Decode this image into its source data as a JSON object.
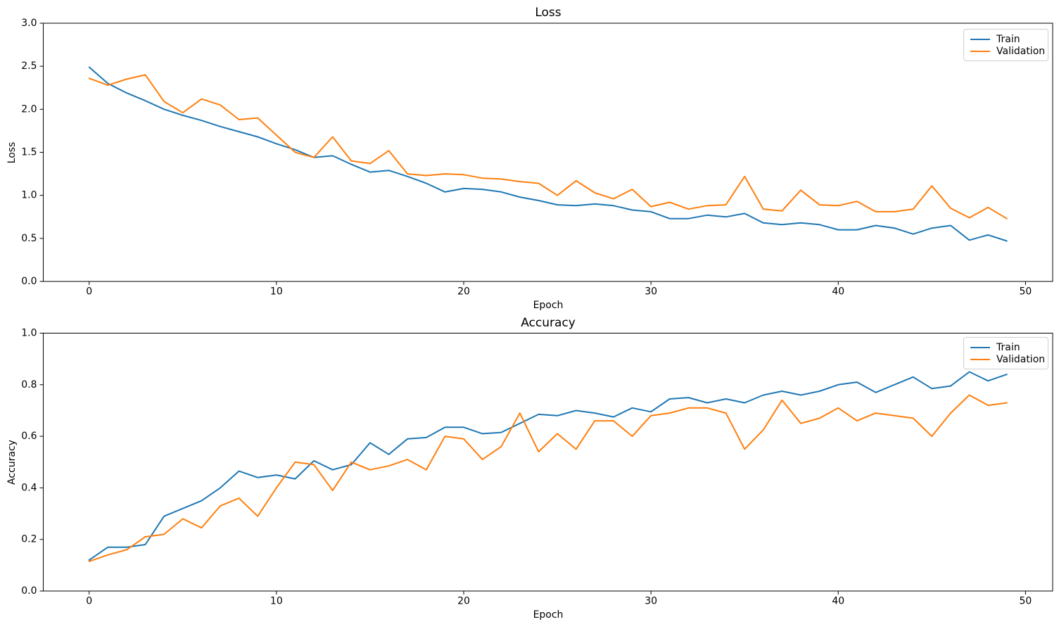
{
  "figure": {
    "background": "#ffffff"
  },
  "colors": {
    "train": "#1f77b4",
    "validation": "#ff7f0e",
    "spine": "#000000",
    "tick_text": "#000000",
    "legend_border": "#cfcfcf"
  },
  "chart_data": [
    {
      "id": "loss",
      "type": "line",
      "title": "Loss",
      "xlabel": "Epoch",
      "ylabel": "Loss",
      "grid": false,
      "legend_position": "upper right",
      "xlim": [
        -2.45,
        51.45
      ],
      "ylim": [
        0,
        3
      ],
      "x_start": 0,
      "x_step": 1,
      "x_tick_values": [
        0,
        10,
        20,
        30,
        40,
        50
      ],
      "x_tick_labels": [
        "0",
        "10",
        "20",
        "30",
        "40",
        "50"
      ],
      "y_tick_values": [
        0.0,
        0.5,
        1.0,
        1.5,
        2.0,
        2.5,
        3.0
      ],
      "y_tick_labels": [
        "0.0",
        "0.5",
        "1.0",
        "1.5",
        "2.0",
        "2.5",
        "3.0"
      ],
      "series": [
        {
          "name": "Train",
          "color": "#1f77b4",
          "values": [
            2.49,
            2.3,
            2.19,
            2.1,
            2.0,
            1.93,
            1.87,
            1.8,
            1.74,
            1.68,
            1.6,
            1.53,
            1.44,
            1.46,
            1.36,
            1.27,
            1.29,
            1.22,
            1.14,
            1.04,
            1.08,
            1.07,
            1.04,
            0.98,
            0.94,
            0.89,
            0.88,
            0.9,
            0.88,
            0.83,
            0.81,
            0.73,
            0.73,
            0.77,
            0.75,
            0.79,
            0.68,
            0.66,
            0.68,
            0.66,
            0.6,
            0.6,
            0.65,
            0.62,
            0.55,
            0.62,
            0.65,
            0.48,
            0.54,
            0.47
          ]
        },
        {
          "name": "Validation",
          "color": "#ff7f0e",
          "values": [
            2.36,
            2.28,
            2.35,
            2.4,
            2.09,
            1.96,
            2.12,
            2.05,
            1.88,
            1.9,
            1.7,
            1.5,
            1.44,
            1.68,
            1.4,
            1.37,
            1.52,
            1.25,
            1.23,
            1.25,
            1.24,
            1.2,
            1.19,
            1.16,
            1.14,
            1.0,
            1.17,
            1.03,
            0.96,
            1.07,
            0.87,
            0.92,
            0.84,
            0.88,
            0.89,
            1.22,
            0.84,
            0.82,
            1.06,
            0.89,
            0.88,
            0.93,
            0.81,
            0.81,
            0.84,
            1.11,
            0.85,
            0.74,
            0.86,
            0.73
          ]
        }
      ]
    },
    {
      "id": "accuracy",
      "type": "line",
      "title": "Accuracy",
      "xlabel": "Epoch",
      "ylabel": "Accuracy",
      "grid": false,
      "legend_position": "upper right",
      "xlim": [
        -2.45,
        51.45
      ],
      "ylim": [
        0,
        1
      ],
      "x_start": 0,
      "x_step": 1,
      "x_tick_values": [
        0,
        10,
        20,
        30,
        40,
        50
      ],
      "x_tick_labels": [
        "0",
        "10",
        "20",
        "30",
        "40",
        "50"
      ],
      "y_tick_values": [
        0.0,
        0.2,
        0.4,
        0.6,
        0.8,
        1.0
      ],
      "y_tick_labels": [
        "0.0",
        "0.2",
        "0.4",
        "0.6",
        "0.8",
        "1.0"
      ],
      "series": [
        {
          "name": "Train",
          "color": "#1f77b4",
          "values": [
            0.12,
            0.17,
            0.17,
            0.18,
            0.29,
            0.32,
            0.35,
            0.4,
            0.465,
            0.44,
            0.45,
            0.435,
            0.505,
            0.47,
            0.49,
            0.575,
            0.53,
            0.59,
            0.595,
            0.635,
            0.635,
            0.61,
            0.615,
            0.65,
            0.685,
            0.68,
            0.7,
            0.69,
            0.675,
            0.71,
            0.695,
            0.745,
            0.75,
            0.73,
            0.745,
            0.73,
            0.76,
            0.775,
            0.76,
            0.775,
            0.8,
            0.81,
            0.77,
            0.8,
            0.83,
            0.785,
            0.795,
            0.85,
            0.815,
            0.84
          ]
        },
        {
          "name": "Validation",
          "color": "#ff7f0e",
          "values": [
            0.115,
            0.14,
            0.16,
            0.21,
            0.22,
            0.28,
            0.245,
            0.33,
            0.36,
            0.29,
            0.4,
            0.5,
            0.49,
            0.39,
            0.5,
            0.47,
            0.485,
            0.51,
            0.47,
            0.6,
            0.59,
            0.51,
            0.56,
            0.69,
            0.54,
            0.61,
            0.55,
            0.66,
            0.66,
            0.6,
            0.68,
            0.69,
            0.71,
            0.71,
            0.69,
            0.55,
            0.625,
            0.74,
            0.65,
            0.67,
            0.71,
            0.66,
            0.69,
            0.68,
            0.67,
            0.6,
            0.69,
            0.76,
            0.72,
            0.73
          ]
        }
      ]
    }
  ]
}
